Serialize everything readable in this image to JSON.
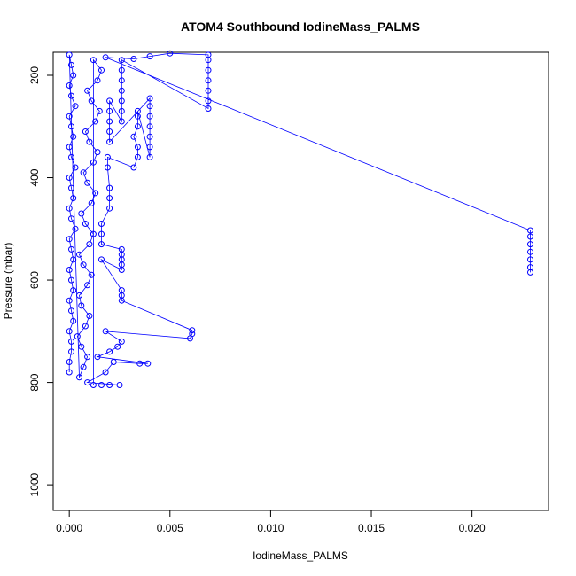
{
  "chart_data": {
    "type": "scatter",
    "title": "ATOM4 Southbound IodineMass_PALMS",
    "xlabel": "IodineMass_PALMS",
    "ylabel": "Pressure (mbar)",
    "xlim": [
      -0.0008,
      0.0238
    ],
    "ylim": [
      1050,
      155
    ],
    "y_reversed": true,
    "x_ticks": [
      "0.000",
      "0.005",
      "0.010",
      "0.015",
      "0.020"
    ],
    "x_tick_values": [
      0,
      0.005,
      0.01,
      0.015,
      0.02
    ],
    "y_ticks": [
      "200",
      "400",
      "600",
      "800",
      "1000"
    ],
    "y_tick_values": [
      200,
      400,
      600,
      800,
      1000
    ],
    "grid": false,
    "legend": "none",
    "series_color": "#0000ff",
    "series": [
      {
        "points": [
          [
            0.0,
            780
          ],
          [
            0.0,
            760
          ],
          [
            0.0001,
            740
          ],
          [
            0.0001,
            720
          ],
          [
            0.0,
            700
          ],
          [
            0.0002,
            680
          ],
          [
            0.0001,
            660
          ],
          [
            0.0,
            640
          ],
          [
            0.0002,
            620
          ],
          [
            0.0001,
            600
          ],
          [
            0.0,
            580
          ],
          [
            0.0002,
            560
          ],
          [
            0.0001,
            540
          ],
          [
            0.0,
            520
          ],
          [
            0.0003,
            500
          ],
          [
            0.0001,
            480
          ],
          [
            0.0,
            460
          ],
          [
            0.0002,
            440
          ],
          [
            0.0001,
            420
          ],
          [
            0.0,
            400
          ],
          [
            0.0003,
            380
          ],
          [
            0.0001,
            360
          ],
          [
            0.0,
            340
          ],
          [
            0.0002,
            320
          ],
          [
            0.0001,
            300
          ],
          [
            0.0,
            280
          ],
          [
            0.0003,
            260
          ],
          [
            0.0001,
            240
          ],
          [
            0.0,
            220
          ],
          [
            0.0002,
            200
          ],
          [
            0.0001,
            180
          ],
          [
            0.0,
            160
          ],
          [
            0.0005,
            790
          ],
          [
            0.0007,
            770
          ],
          [
            0.0009,
            750
          ],
          [
            0.0006,
            730
          ],
          [
            0.0004,
            710
          ],
          [
            0.0008,
            690
          ],
          [
            0.001,
            670
          ],
          [
            0.0006,
            650
          ],
          [
            0.0005,
            630
          ],
          [
            0.0009,
            610
          ],
          [
            0.0011,
            590
          ],
          [
            0.0007,
            570
          ],
          [
            0.0005,
            550
          ],
          [
            0.001,
            530
          ],
          [
            0.0012,
            510
          ],
          [
            0.0008,
            490
          ],
          [
            0.0006,
            470
          ],
          [
            0.0011,
            450
          ],
          [
            0.0013,
            430
          ],
          [
            0.0009,
            410
          ],
          [
            0.0007,
            390
          ],
          [
            0.0012,
            370
          ],
          [
            0.0014,
            350
          ],
          [
            0.001,
            330
          ],
          [
            0.0008,
            310
          ],
          [
            0.0013,
            290
          ],
          [
            0.0015,
            270
          ],
          [
            0.0011,
            250
          ],
          [
            0.0009,
            230
          ],
          [
            0.0014,
            210
          ],
          [
            0.0016,
            190
          ],
          [
            0.0012,
            170
          ],
          [
            0.0012,
            805
          ],
          [
            0.0016,
            805
          ],
          [
            0.002,
            805
          ],
          [
            0.0025,
            805
          ],
          [
            0.0009,
            800
          ],
          [
            0.0018,
            780
          ],
          [
            0.0022,
            760
          ],
          [
            0.0035,
            763
          ],
          [
            0.0039,
            763
          ],
          [
            0.0014,
            750
          ],
          [
            0.002,
            740
          ],
          [
            0.0024,
            730
          ],
          [
            0.0026,
            720
          ],
          [
            0.0018,
            700
          ],
          [
            0.006,
            714
          ],
          [
            0.0061,
            705
          ],
          [
            0.0061,
            698
          ],
          [
            0.0026,
            640
          ],
          [
            0.0026,
            630
          ],
          [
            0.0026,
            620
          ],
          [
            0.0016,
            560
          ],
          [
            0.0026,
            580
          ],
          [
            0.0026,
            570
          ],
          [
            0.0026,
            560
          ],
          [
            0.0026,
            550
          ],
          [
            0.0026,
            540
          ],
          [
            0.0016,
            530
          ],
          [
            0.0016,
            510
          ],
          [
            0.0016,
            490
          ],
          [
            0.002,
            460
          ],
          [
            0.002,
            440
          ],
          [
            0.002,
            420
          ],
          [
            0.0019,
            380
          ],
          [
            0.0019,
            360
          ],
          [
            0.0032,
            380
          ],
          [
            0.0034,
            360
          ],
          [
            0.0034,
            340
          ],
          [
            0.0032,
            320
          ],
          [
            0.0034,
            300
          ],
          [
            0.0034,
            280
          ],
          [
            0.0034,
            270
          ],
          [
            0.004,
            360
          ],
          [
            0.004,
            340
          ],
          [
            0.004,
            320
          ],
          [
            0.004,
            300
          ],
          [
            0.004,
            280
          ],
          [
            0.004,
            260
          ],
          [
            0.004,
            245
          ],
          [
            0.002,
            330
          ],
          [
            0.002,
            310
          ],
          [
            0.002,
            290
          ],
          [
            0.002,
            270
          ],
          [
            0.002,
            250
          ],
          [
            0.0026,
            290
          ],
          [
            0.0026,
            270
          ],
          [
            0.0026,
            250
          ],
          [
            0.0026,
            230
          ],
          [
            0.0026,
            210
          ],
          [
            0.0026,
            190
          ],
          [
            0.0026,
            170
          ],
          [
            0.0069,
            265
          ],
          [
            0.0069,
            250
          ],
          [
            0.0069,
            230
          ],
          [
            0.0069,
            210
          ],
          [
            0.0069,
            190
          ],
          [
            0.0069,
            170
          ],
          [
            0.0069,
            160
          ],
          [
            0.005,
            157
          ],
          [
            0.004,
            163
          ],
          [
            0.0032,
            168
          ],
          [
            0.0018,
            165
          ],
          [
            0.0229,
            503
          ],
          [
            0.0229,
            515
          ],
          [
            0.0229,
            530
          ],
          [
            0.0229,
            545
          ],
          [
            0.0229,
            560
          ],
          [
            0.0229,
            575
          ],
          [
            0.0229,
            585
          ]
        ]
      }
    ]
  }
}
